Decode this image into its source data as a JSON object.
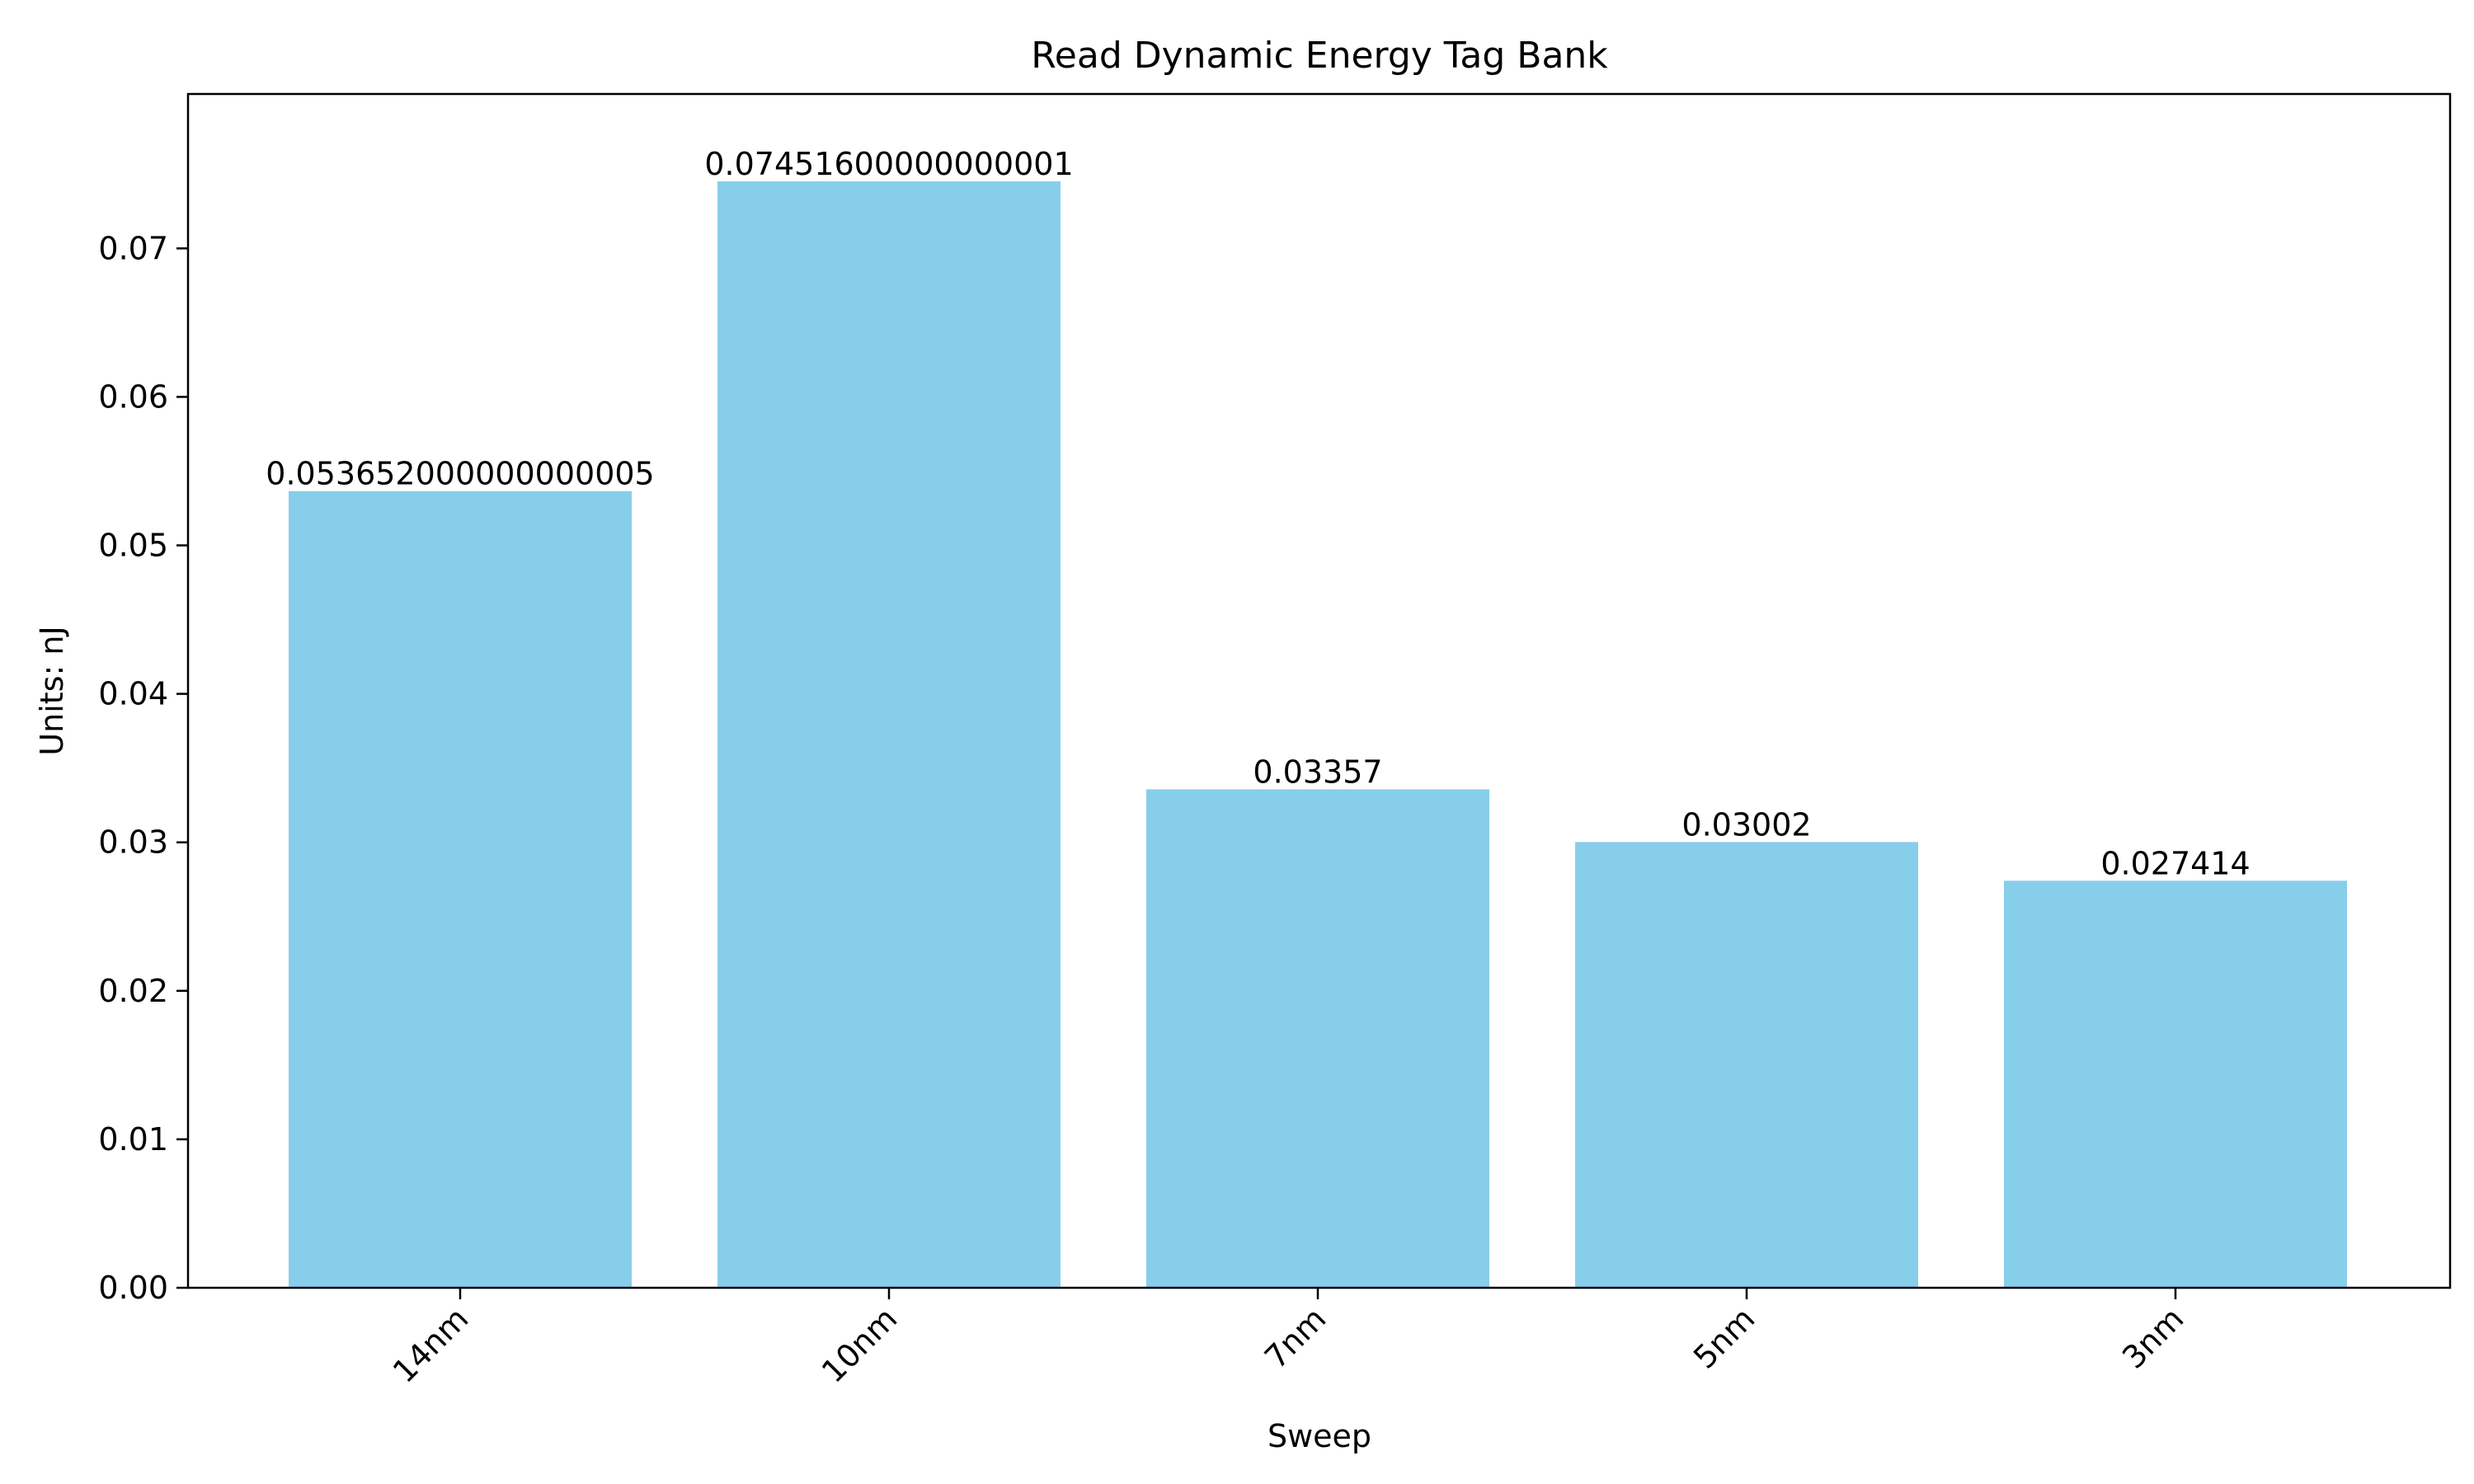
{
  "chart_data": {
    "type": "bar",
    "title": "Read Dynamic Energy Tag Bank",
    "xlabel": "Sweep",
    "ylabel": "Units: nJ",
    "categories": [
      "14nm",
      "10nm",
      "7nm",
      "5nm",
      "3nm"
    ],
    "values": [
      0.053652000000000005,
      0.07451600000000001,
      0.03357,
      0.03002,
      0.027414
    ],
    "value_labels": [
      "0.053652000000000005",
      "0.07451600000000001",
      "0.03357",
      "0.03002",
      "0.027414"
    ],
    "ylim": [
      0,
      0.0804
    ],
    "yticks": [
      0.0,
      0.01,
      0.02,
      0.03,
      0.04,
      0.05,
      0.06,
      0.07
    ],
    "ytick_labels": [
      "0.00",
      "0.01",
      "0.02",
      "0.03",
      "0.04",
      "0.05",
      "0.06",
      "0.07"
    ],
    "grid": false,
    "bar_color": "#87ceeb"
  }
}
